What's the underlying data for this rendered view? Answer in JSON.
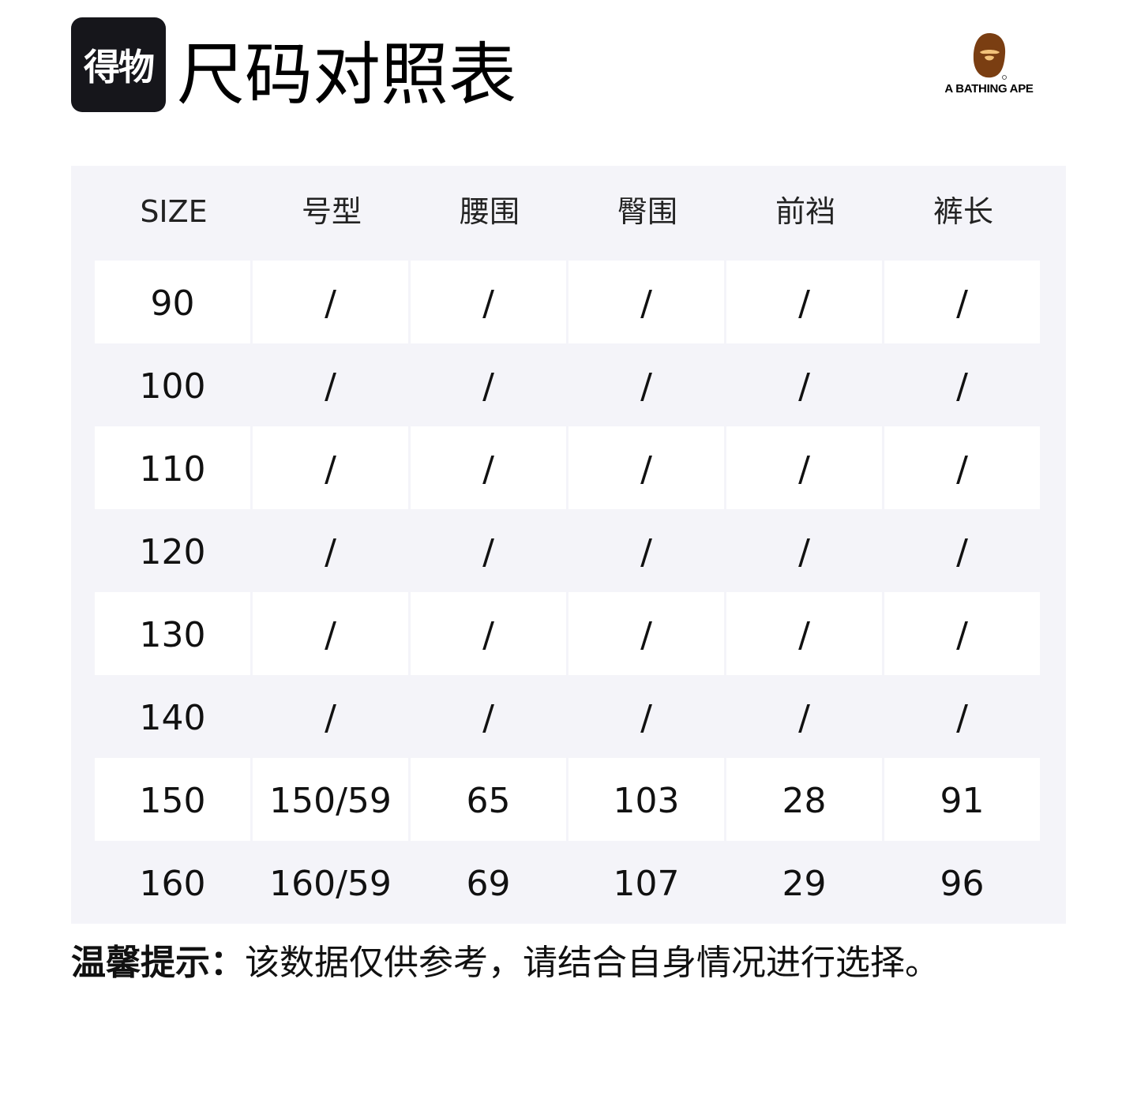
{
  "header": {
    "logo_text": "得物",
    "title": "尺码对照表",
    "brand": "A BATHING APE",
    "brand_colors": {
      "head": "#7a3e12",
      "face": "#f2c27a"
    }
  },
  "table": {
    "columns": [
      "SIZE",
      "号型",
      "腰围",
      "臀围",
      "前裆",
      "裤长"
    ],
    "rows": [
      [
        "90",
        "/",
        "/",
        "/",
        "/",
        "/"
      ],
      [
        "100",
        "/",
        "/",
        "/",
        "/",
        "/"
      ],
      [
        "110",
        "/",
        "/",
        "/",
        "/",
        "/"
      ],
      [
        "120",
        "/",
        "/",
        "/",
        "/",
        "/"
      ],
      [
        "130",
        "/",
        "/",
        "/",
        "/",
        "/"
      ],
      [
        "140",
        "/",
        "/",
        "/",
        "/",
        "/"
      ],
      [
        "150",
        "150/59",
        "65",
        "103",
        "28",
        "91"
      ],
      [
        "160",
        "160/59",
        "69",
        "107",
        "29",
        "96"
      ]
    ]
  },
  "note": {
    "label": "温馨提示：",
    "text": "该数据仅供参考，请结合自身情况进行选择。"
  }
}
